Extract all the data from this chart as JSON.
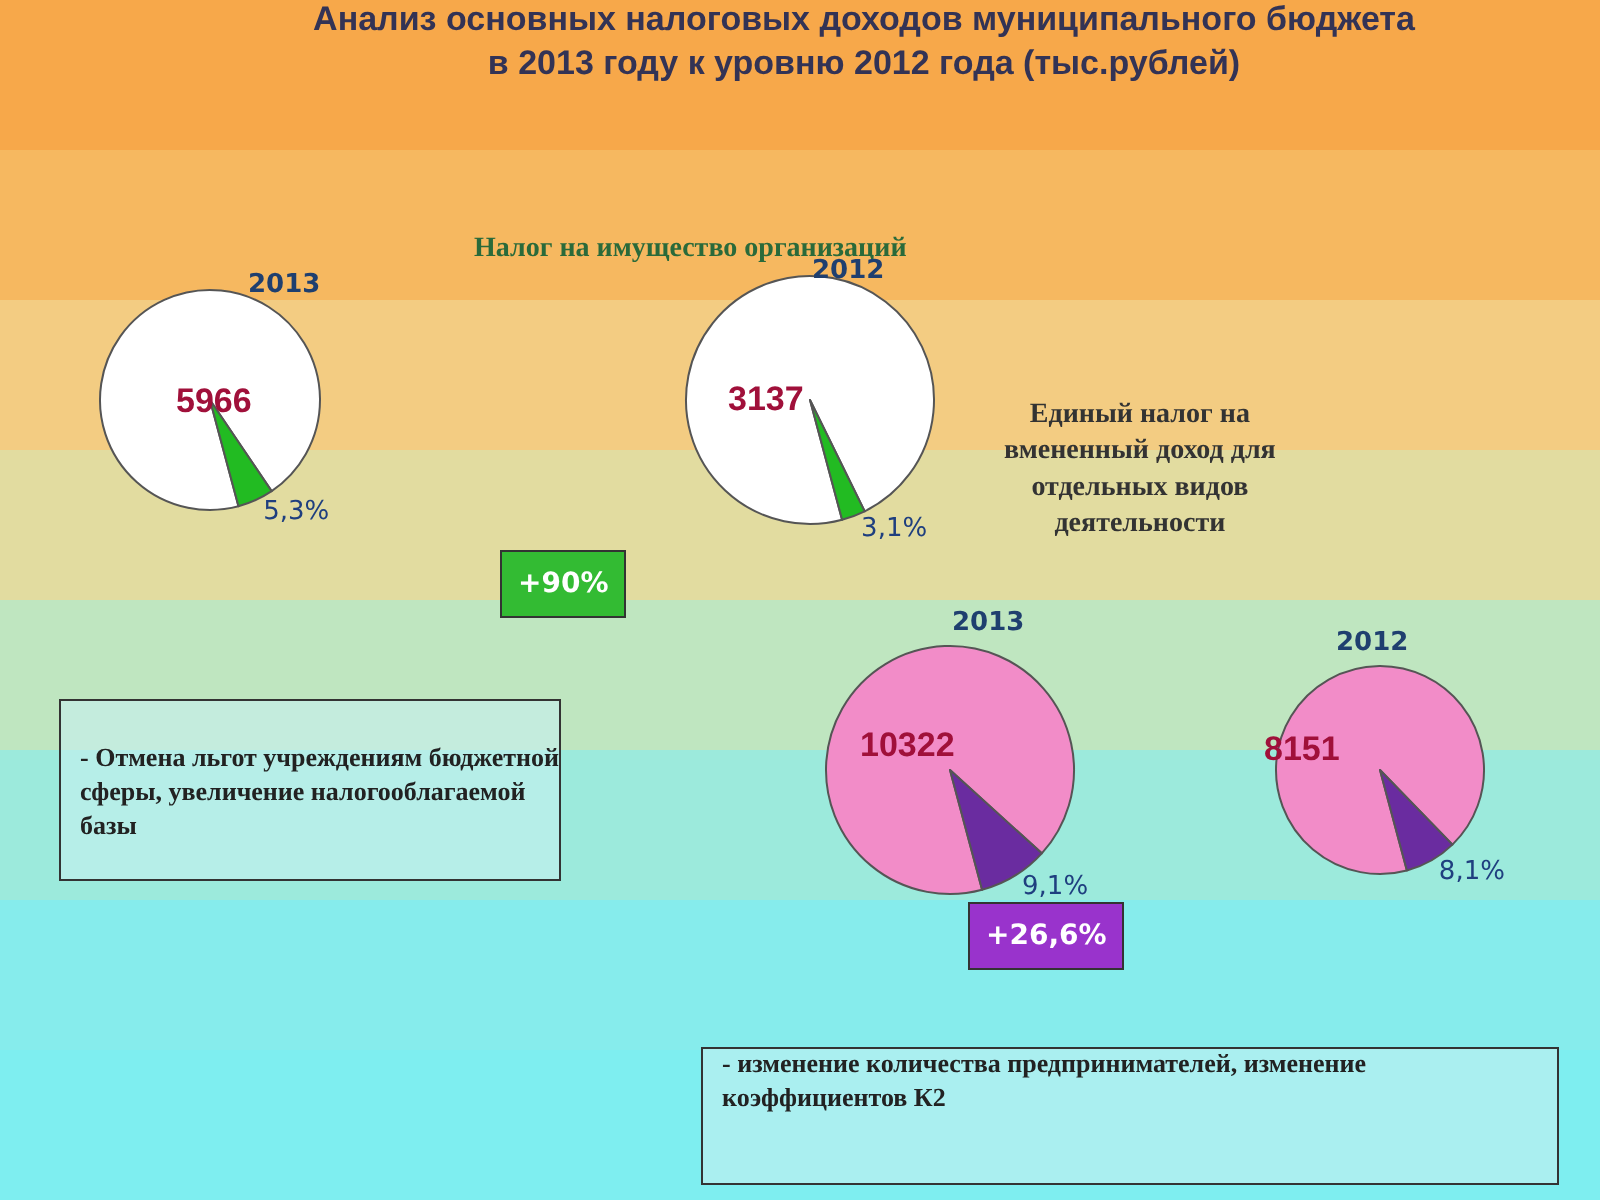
{
  "chart_data": [
    {
      "type": "other",
      "title": "Анализ основных налоговых доходов муниципального бюджета\nв 2013 году к уровню 2012 года (тыс.рублей)",
      "annotations": [
        "Налог на имущество организаций",
        "+90%",
        "- Отмена льгот учреждениям бюджетной сферы, увеличение налогооблагаемой базы",
        "Единый налог на вмененный доход для отдельных видов деятельности",
        "+26,6%",
        "- изменение количества предпринимателей, изменение коэффициентов К2"
      ]
    },
    {
      "type": "pie",
      "title": "2013",
      "categories": [
        null,
        null
      ],
      "values": [
        94.7,
        5.3
      ],
      "colors": [
        "#ffffff",
        "#22bb22"
      ],
      "value_labels": [
        null,
        "5,3%"
      ],
      "annotations": [
        "5966"
      ]
    },
    {
      "type": "pie",
      "title": "2012",
      "categories": [
        null,
        null
      ],
      "values": [
        96.9,
        3.1
      ],
      "colors": [
        "#ffffff",
        "#22bb22"
      ],
      "value_labels": [
        null,
        "3,1%"
      ],
      "annotations": [
        "3137"
      ]
    },
    {
      "type": "pie",
      "title": "2013",
      "categories": [
        null,
        null
      ],
      "values": [
        90.9,
        9.1
      ],
      "colors": [
        "#f28cc8",
        "#6a2ca0"
      ],
      "value_labels": [
        null,
        "9,1%"
      ],
      "annotations": [
        "10322"
      ]
    },
    {
      "type": "pie",
      "title": "2012",
      "categories": [
        null,
        null
      ],
      "values": [
        91.9,
        8.1
      ],
      "colors": [
        "#f28cc8",
        "#6a2ca0"
      ],
      "value_labels": [
        null,
        "8,1%"
      ],
      "annotations": [
        "8151"
      ]
    }
  ]
}
